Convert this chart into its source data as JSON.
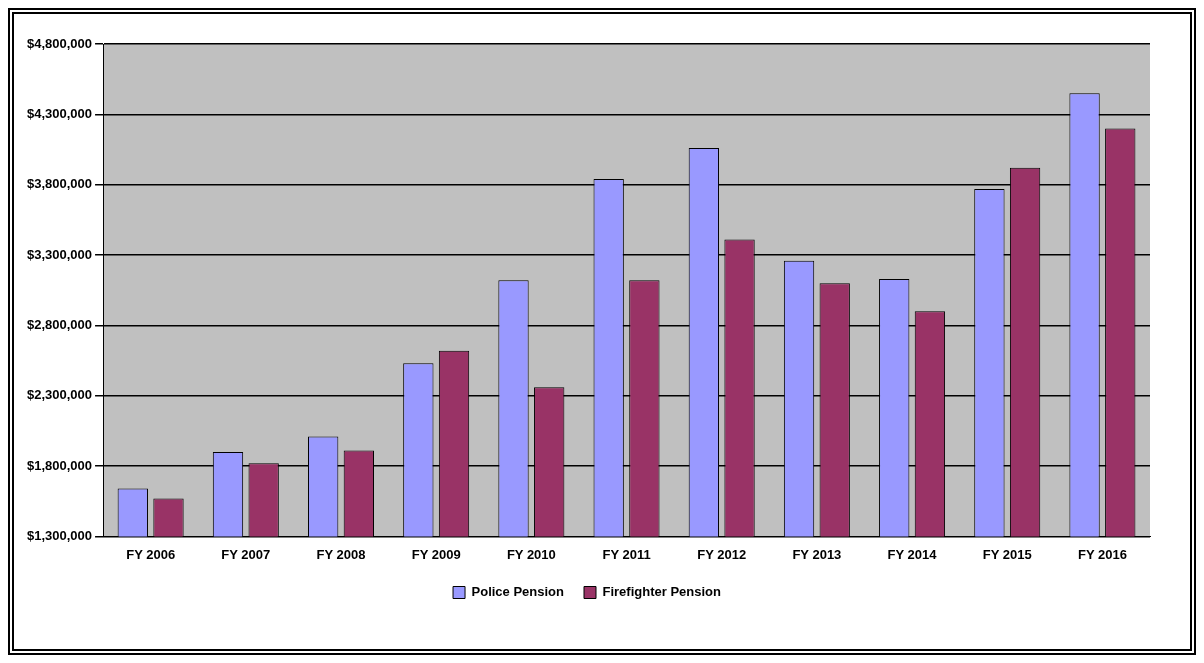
{
  "chart_data": {
    "type": "bar",
    "categories": [
      "FY 2006",
      "FY 2007",
      "FY 2008",
      "FY 2009",
      "FY 2010",
      "FY 2011",
      "FY 2012",
      "FY 2013",
      "FY 2014",
      "FY 2015",
      "FY 2016"
    ],
    "series": [
      {
        "name": "Police Pension",
        "color": "#9999ff",
        "values": [
          1640000,
          1900000,
          2010000,
          2530000,
          3120000,
          3840000,
          4060000,
          3260000,
          3130000,
          3770000,
          4450000
        ]
      },
      {
        "name": "Firefighter Pension",
        "color": "#993366",
        "values": [
          1570000,
          1820000,
          1910000,
          2620000,
          2360000,
          3120000,
          3410000,
          3100000,
          2900000,
          3920000,
          4200000
        ]
      }
    ],
    "ylim": [
      1300000,
      4800000
    ],
    "yticks": [
      {
        "value": 1300000,
        "label": "$1,300,000"
      },
      {
        "value": 1800000,
        "label": "$1,800,000"
      },
      {
        "value": 2300000,
        "label": "$2,300,000"
      },
      {
        "value": 2800000,
        "label": "$2,800,000"
      },
      {
        "value": 3300000,
        "label": "$3,300,000"
      },
      {
        "value": 3800000,
        "label": "$3,800,000"
      },
      {
        "value": 4300000,
        "label": "$4,300,000"
      },
      {
        "value": 4800000,
        "label": "$4,800,000"
      }
    ],
    "grid": "y",
    "legend": "bottom"
  }
}
